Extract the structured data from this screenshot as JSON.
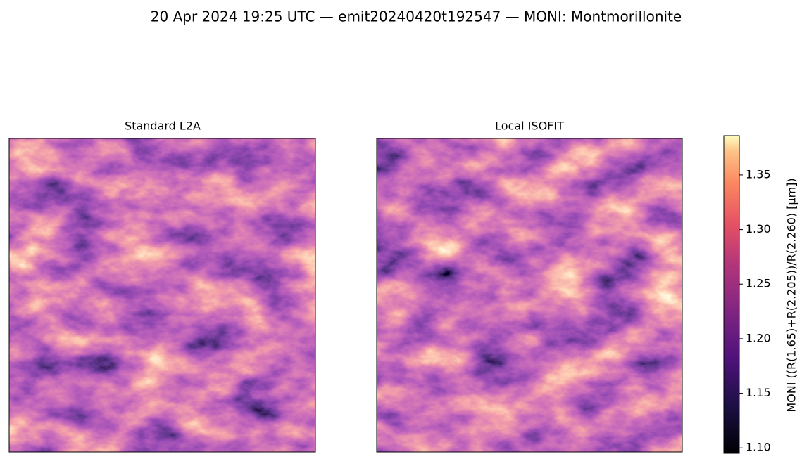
{
  "title": "20 Apr 2024 19:25 UTC — emit20240420t192547 — MONI: Montmorillonite",
  "panels": [
    {
      "title": "Standard L2A"
    },
    {
      "title": "Local ISOFIT"
    }
  ],
  "colorbar": {
    "label": "MONI  ((R(1.65)+R(2.205))/R(2.260)  [µm])",
    "lim": [
      1.095,
      1.386
    ],
    "ticks": [
      {
        "value": 1.1,
        "label": "1.10"
      },
      1.15,
      {
        "value": 1.2,
        "label": "1.20"
      },
      1.25,
      {
        "value": 1.3,
        "label": "1.30"
      },
      1.35
    ]
  }
}
